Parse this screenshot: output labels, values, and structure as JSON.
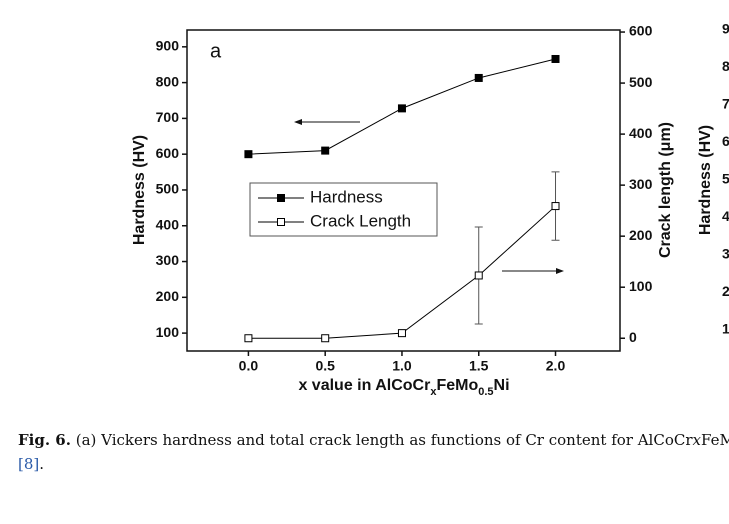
{
  "chart_data": {
    "type": "line",
    "panel_letter": "a",
    "x_label_parts": [
      "x value in AlCoCr",
      "x",
      "FeMo",
      "0.5",
      "Ni"
    ],
    "y_label": "Hardness (HV)",
    "y2_label": "Crack length (μm)",
    "x": [
      0,
      0.5,
      1.0,
      1.5,
      2.0
    ],
    "series": [
      {
        "name": "Hardness",
        "color": "#000000",
        "marker": "filled-square",
        "values": [
          600,
          610,
          728,
          813,
          866
        ]
      },
      {
        "name": "Crack Length",
        "color": "#000000",
        "marker": "open-square",
        "axis": "y2",
        "values": [
          0,
          0,
          10,
          123,
          259
        ],
        "errors": [
          null,
          null,
          5,
          95,
          67
        ]
      }
    ],
    "xlim": [
      -0.4,
      2.42
    ],
    "xticks": [
      {
        "value": 0,
        "label": "0.0"
      },
      {
        "value": 0.5,
        "label": "0.5"
      },
      {
        "value": 1,
        "label": "1.0"
      },
      {
        "value": 1.5,
        "label": "1.5"
      },
      {
        "value": 2,
        "label": "2.0"
      }
    ],
    "ylim": [
      50,
      947
    ],
    "yticks": [
      100,
      200,
      300,
      400,
      500,
      600,
      700,
      800,
      900
    ],
    "y2lim": [
      -25,
      604
    ],
    "y2ticks": [
      0,
      100,
      200,
      300,
      400,
      500,
      600
    ],
    "legend": "center-left",
    "grid": false
  },
  "clipped_panel": {
    "y_label": "Hardness (HV)",
    "tick_labels": [
      "9",
      "8",
      "7",
      "6",
      "5",
      "4",
      "3",
      "2",
      "1"
    ]
  },
  "caption": {
    "label": "Fig. 6.",
    "text": " (a) Vickers hardness and total crack length as functions of Cr content for AlCoCr",
    "italic": "x",
    "rest": "FeM",
    "ref": "[8]",
    "end": "."
  }
}
